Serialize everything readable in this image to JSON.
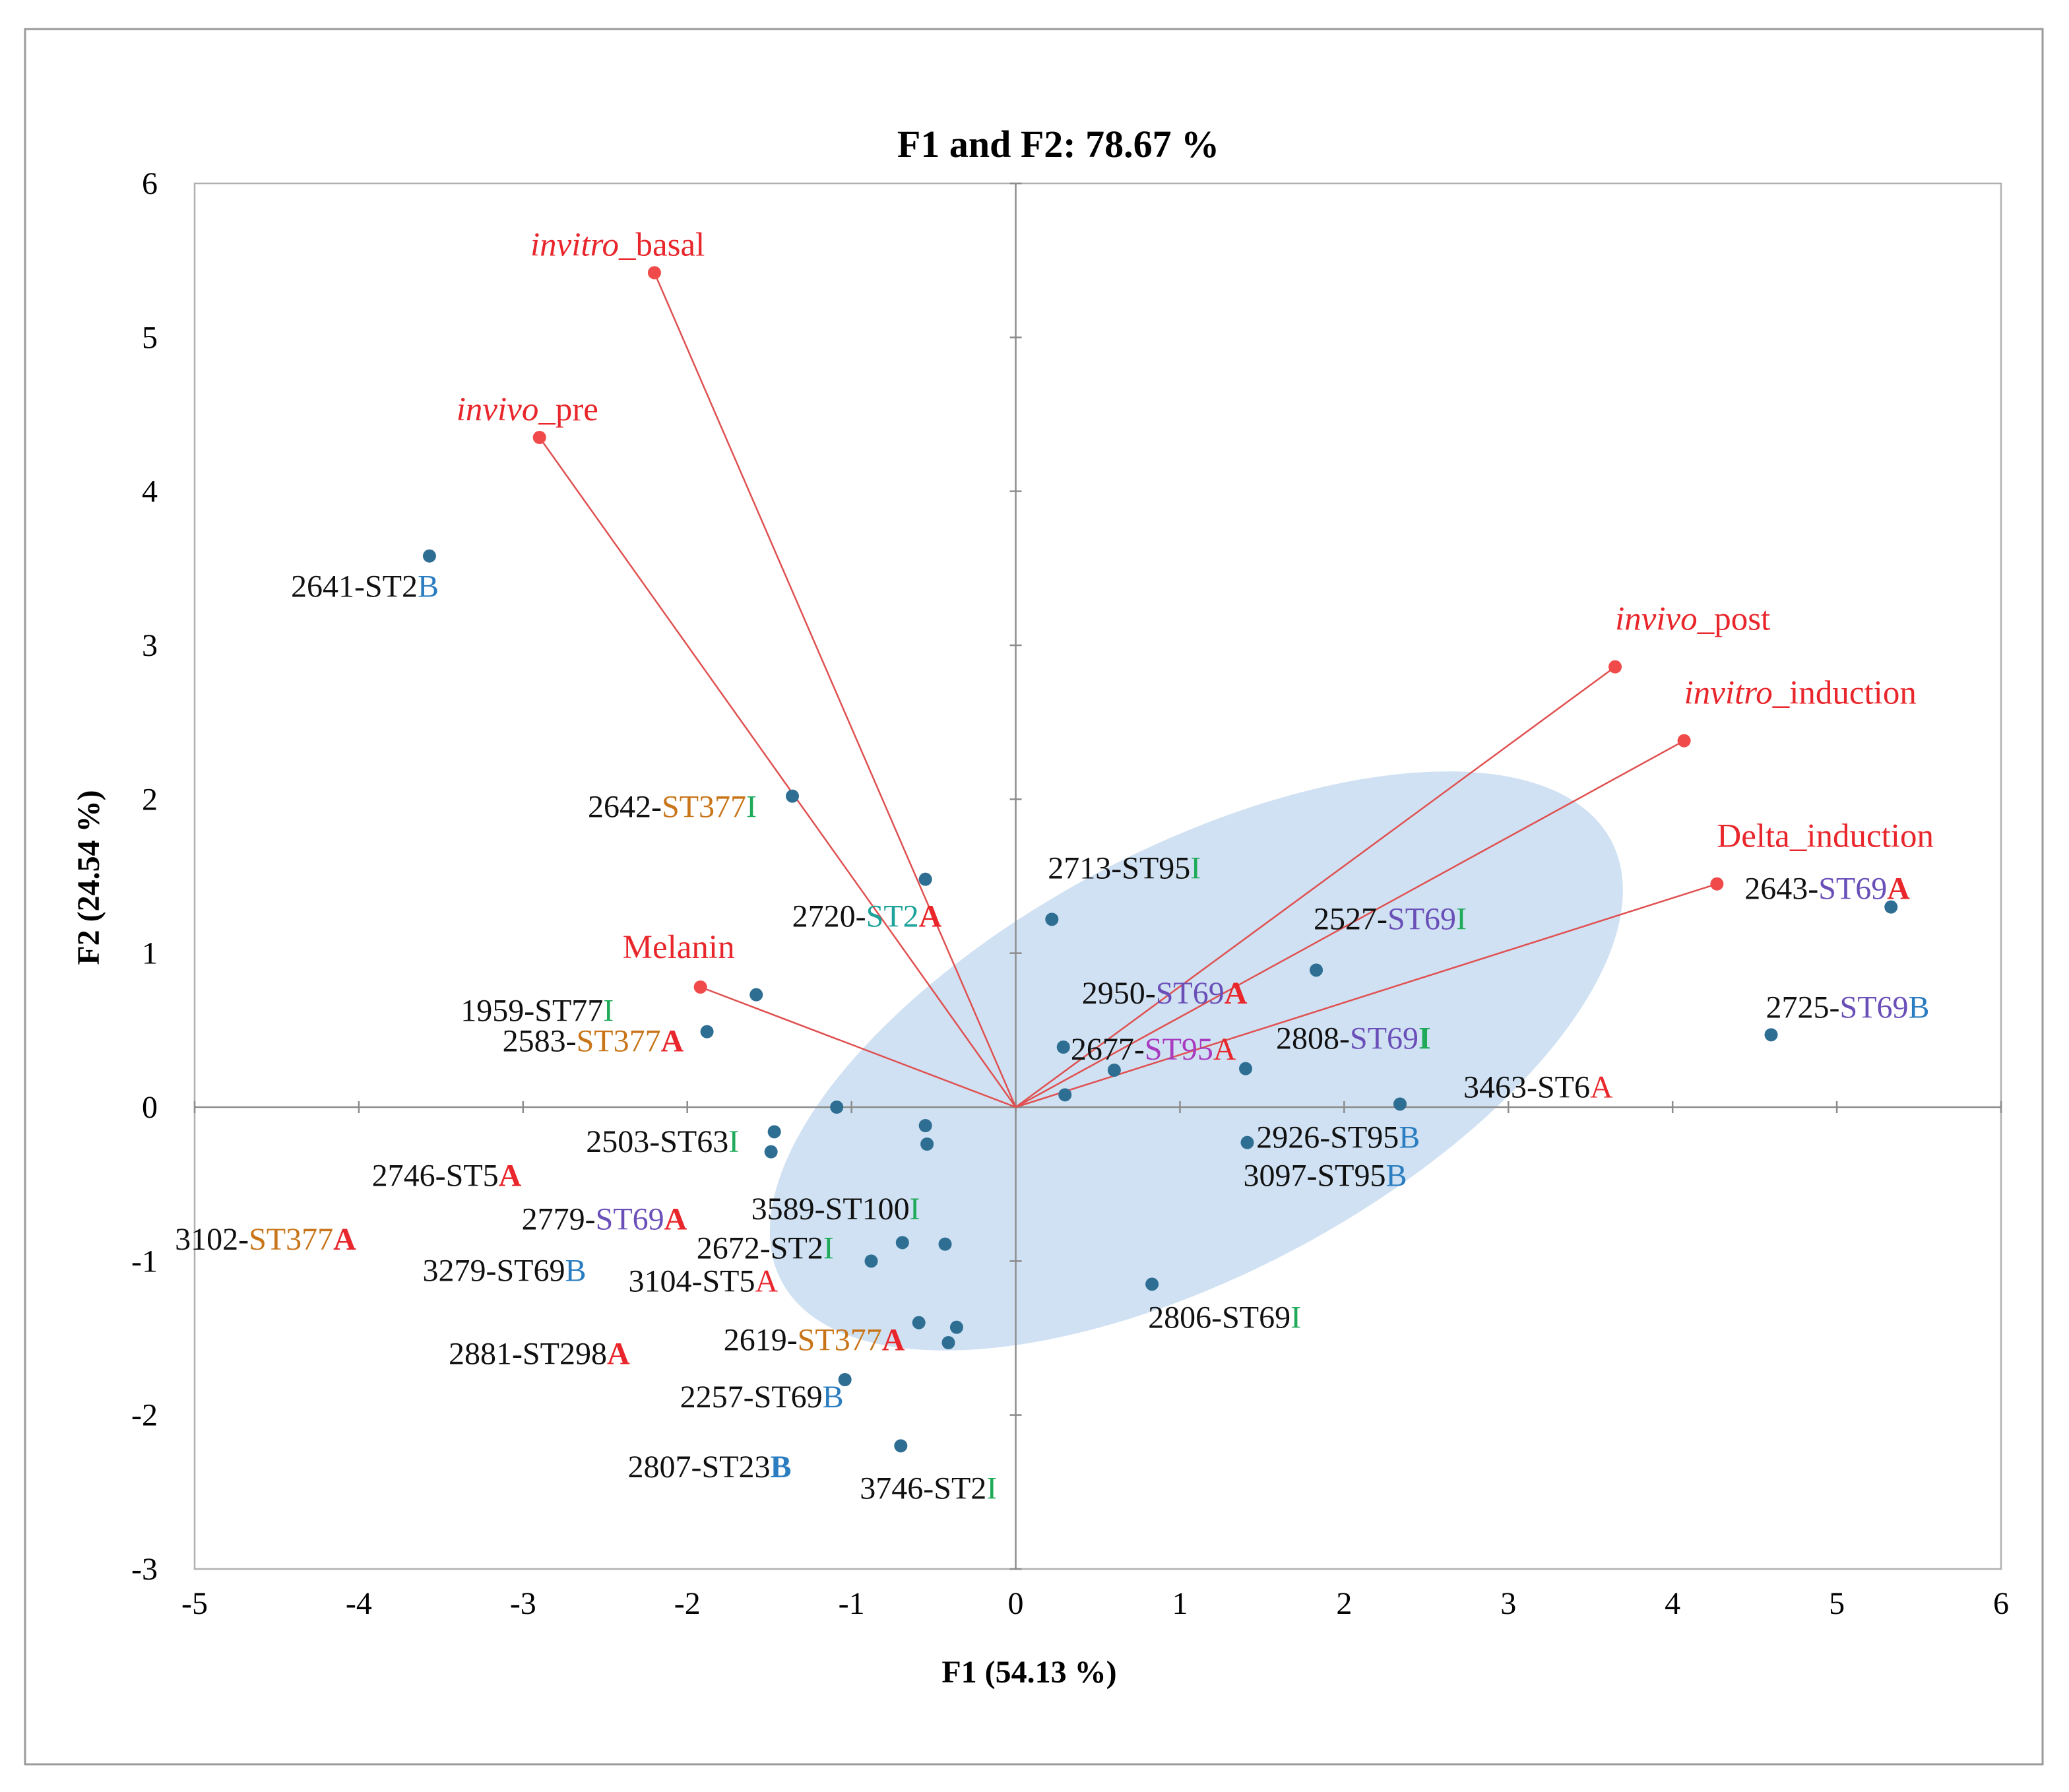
{
  "colors": {
    "black": "#111111",
    "red": "#e8262b",
    "orange": "#c87519",
    "teal": "#1ea39a",
    "green": "#1faa5a",
    "purple": "#6a4fb8",
    "magenta": "#a83bc0",
    "blue": "#2a7dc0",
    "point": "#2e6e93",
    "variable": "#f04a4a",
    "vector": "#e05050",
    "ellipse": "#c7dcf0"
  },
  "chart_data": {
    "type": "scatter",
    "subtype": "pca-biplot",
    "title": "F1 and F2: 78.67 %",
    "xlabel": "F1 (54.13 %)",
    "ylabel": "F2 (24.54 %)",
    "xlim": [
      -5,
      6
    ],
    "ylim": [
      -3,
      6
    ],
    "xticks": [
      -5,
      -4,
      -3,
      -2,
      -1,
      0,
      1,
      2,
      3,
      4,
      5,
      6
    ],
    "yticks": [
      -3,
      -2,
      -1,
      0,
      1,
      2,
      3,
      4,
      5,
      6
    ],
    "grid": false,
    "ellipse": {
      "center": [
        1.1,
        0.3
      ],
      "semi_axis_x_units": 2.86,
      "semi_axis_y_units": 1.38,
      "angle_deg": -28
    },
    "variables": [
      {
        "name": "invitro_basal",
        "x": -2.2,
        "y": 5.42,
        "label": [
          {
            "t": "invitro",
            "i": true
          },
          {
            "t": "_basal"
          }
        ]
      },
      {
        "name": "invivo_pre",
        "x": -2.9,
        "y": 4.35,
        "label": [
          {
            "t": "invivo",
            "i": true
          },
          {
            "t": "_pre"
          }
        ]
      },
      {
        "name": "Melanin",
        "x": -1.92,
        "y": 0.78,
        "label": [
          {
            "t": "Melanin"
          }
        ]
      },
      {
        "name": "invivo_post",
        "x": 3.65,
        "y": 2.86,
        "label": [
          {
            "t": "invivo",
            "i": true
          },
          {
            "t": "_post"
          }
        ]
      },
      {
        "name": "invitro_induction",
        "x": 4.07,
        "y": 2.38,
        "label": [
          {
            "t": "invitro",
            "i": true
          },
          {
            "t": "_induction"
          }
        ]
      },
      {
        "name": "Delta_induction",
        "x": 4.27,
        "y": 1.45,
        "label": [
          {
            "t": "Delta_induction"
          }
        ]
      }
    ],
    "observations": [
      {
        "id": "2641-ST2B",
        "x": -3.57,
        "y": 3.58,
        "label": [
          {
            "t": "2641-ST2",
            "c": "black"
          },
          {
            "t": "B",
            "c": "blue"
          }
        ]
      },
      {
        "id": "2642-ST377I",
        "x": -1.36,
        "y": 2.02,
        "label": [
          {
            "t": "2642-",
            "c": "black"
          },
          {
            "t": "ST377",
            "c": "orange"
          },
          {
            "t": "I",
            "c": "green"
          }
        ]
      },
      {
        "id": "2720-ST2A",
        "x": -0.55,
        "y": 1.48,
        "label": [
          {
            "t": "2720-",
            "c": "black"
          },
          {
            "t": "ST2",
            "c": "teal"
          },
          {
            "t": "A",
            "c": "red",
            "b": true
          }
        ]
      },
      {
        "id": "1959-ST77I",
        "x": -1.58,
        "y": 0.73,
        "label": [
          {
            "t": "1959-ST77",
            "c": "black"
          },
          {
            "t": "I",
            "c": "green"
          }
        ]
      },
      {
        "id": "2583-ST377A",
        "x": -1.88,
        "y": 0.49,
        "label": [
          {
            "t": "2583-",
            "c": "black"
          },
          {
            "t": "ST377",
            "c": "orange"
          },
          {
            "t": "A",
            "c": "red",
            "b": true
          }
        ]
      },
      {
        "id": "2713-ST95I",
        "x": 0.22,
        "y": 1.22,
        "label": [
          {
            "t": "2713-ST95",
            "c": "black"
          },
          {
            "t": "I",
            "c": "green"
          }
        ]
      },
      {
        "id": "2950-ST69A",
        "x": 0.29,
        "y": 0.39,
        "label": [
          {
            "t": "2950-",
            "c": "black"
          },
          {
            "t": "ST69",
            "c": "purple"
          },
          {
            "t": "A",
            "c": "red",
            "b": true
          }
        ]
      },
      {
        "id": "2527-ST69I",
        "x": 1.83,
        "y": 0.89,
        "label": [
          {
            "t": "2527-",
            "c": "black"
          },
          {
            "t": "ST69",
            "c": "purple"
          },
          {
            "t": "I",
            "c": "green"
          }
        ]
      },
      {
        "id": "2808-ST69I",
        "x": 1.4,
        "y": 0.25,
        "label": [
          {
            "t": "2808-",
            "c": "black"
          },
          {
            "t": "ST69",
            "c": "purple"
          },
          {
            "t": "I",
            "c": "green",
            "b": true
          }
        ]
      },
      {
        "id": "2677-ST95A",
        "x": 0.6,
        "y": 0.24,
        "label": [
          {
            "t": "2677-",
            "c": "black"
          },
          {
            "t": "ST95",
            "c": "magenta"
          },
          {
            "t": "A",
            "c": "red"
          }
        ]
      },
      {
        "id": "2643-ST69A",
        "x": 5.33,
        "y": 1.3,
        "label": [
          {
            "t": "2643-",
            "c": "black"
          },
          {
            "t": "ST69",
            "c": "purple"
          },
          {
            "t": "A",
            "c": "red",
            "b": true
          }
        ]
      },
      {
        "id": "2725-ST69B",
        "x": 4.6,
        "y": 0.47,
        "label": [
          {
            "t": "2725-",
            "c": "black"
          },
          {
            "t": "ST69",
            "c": "purple"
          },
          {
            "t": "B",
            "c": "blue"
          }
        ]
      },
      {
        "id": "2926-ST95B",
        "x": 0.3,
        "y": 0.08,
        "label": [
          {
            "t": "2926-ST95",
            "c": "black"
          },
          {
            "t": "B",
            "c": "blue"
          }
        ]
      },
      {
        "id": "3463-ST6A",
        "x": 2.34,
        "y": 0.02,
        "label": [
          {
            "t": "3463-ST6",
            "c": "black"
          },
          {
            "t": "A",
            "c": "red"
          }
        ]
      },
      {
        "id": "3097-ST95B",
        "x": 1.41,
        "y": -0.23,
        "label": [
          {
            "t": "3097-ST95",
            "c": "black"
          },
          {
            "t": "B",
            "c": "blue"
          }
        ]
      },
      {
        "id": "2503-ST63I",
        "x": -1.09,
        "y": 0.0,
        "label": [
          {
            "t": "2503-ST63",
            "c": "black"
          },
          {
            "t": "I",
            "c": "green"
          }
        ]
      },
      {
        "id": "2746-ST5A",
        "x": -1.47,
        "y": -0.16,
        "label": [
          {
            "t": "2746-ST5",
            "c": "black"
          },
          {
            "t": "A",
            "c": "red",
            "b": true
          }
        ]
      },
      {
        "id": "2779-ST69A",
        "x": -1.49,
        "y": -0.29,
        "label": [
          {
            "t": "2779-",
            "c": "black"
          },
          {
            "t": "ST69",
            "c": "purple"
          },
          {
            "t": "A",
            "c": "red",
            "b": true
          }
        ]
      },
      {
        "id": "3589-ST100I",
        "x": -0.55,
        "y": -0.12,
        "label": [
          {
            "t": "3589-ST100",
            "c": "black"
          },
          {
            "t": "I",
            "c": "green"
          }
        ]
      },
      {
        "id": "3102-ST377A",
        "x": -0.54,
        "y": -0.24,
        "label": [
          {
            "t": "3102-",
            "c": "black"
          },
          {
            "t": "ST377",
            "c": "orange"
          },
          {
            "t": "A",
            "c": "red",
            "b": true
          }
        ]
      },
      {
        "id": "2672-ST2I",
        "x": -0.69,
        "y": -0.88,
        "label": [
          {
            "t": "2672-ST2",
            "c": "black"
          },
          {
            "t": "I",
            "c": "green"
          }
        ]
      },
      {
        "id": "3279-ST69B",
        "x": -0.88,
        "y": -1.0,
        "label": [
          {
            "t": "3279-ST69",
            "c": "black"
          },
          {
            "t": "B",
            "c": "blue"
          }
        ]
      },
      {
        "id": "3104-ST5A",
        "x": -0.43,
        "y": -0.89,
        "label": [
          {
            "t": "3104-ST5",
            "c": "black"
          },
          {
            "t": "A",
            "c": "red"
          }
        ]
      },
      {
        "id": "2806-ST69I",
        "x": 0.83,
        "y": -1.15,
        "label": [
          {
            "t": "2806-ST69",
            "c": "black"
          },
          {
            "t": "I",
            "c": "green"
          }
        ]
      },
      {
        "id": "2619-ST377A",
        "x": -0.59,
        "y": -1.4,
        "label": [
          {
            "t": "2619-",
            "c": "black"
          },
          {
            "t": "ST377",
            "c": "orange"
          },
          {
            "t": "A",
            "c": "red",
            "b": true
          }
        ]
      },
      {
        "id": "2881-ST298A",
        "x": -0.36,
        "y": -1.43,
        "label": [
          {
            "t": "2881-ST298",
            "c": "black"
          },
          {
            "t": "A",
            "c": "red",
            "b": true
          }
        ]
      },
      {
        "id": "2257-ST69B",
        "x": -1.04,
        "y": -1.77,
        "label": [
          {
            "t": "2257-ST69",
            "c": "black"
          },
          {
            "t": "B",
            "c": "blue"
          }
        ]
      },
      {
        "id": "2807-ST23B",
        "x": -0.41,
        "y": -1.53,
        "label": [
          {
            "t": "2807-ST23",
            "c": "black"
          },
          {
            "t": "B",
            "c": "blue",
            "b": true
          }
        ]
      },
      {
        "id": "3746-ST2I",
        "x": -0.7,
        "y": -2.2,
        "label": [
          {
            "t": "3746-ST2",
            "c": "black"
          },
          {
            "t": "I",
            "c": "green"
          }
        ]
      }
    ]
  }
}
